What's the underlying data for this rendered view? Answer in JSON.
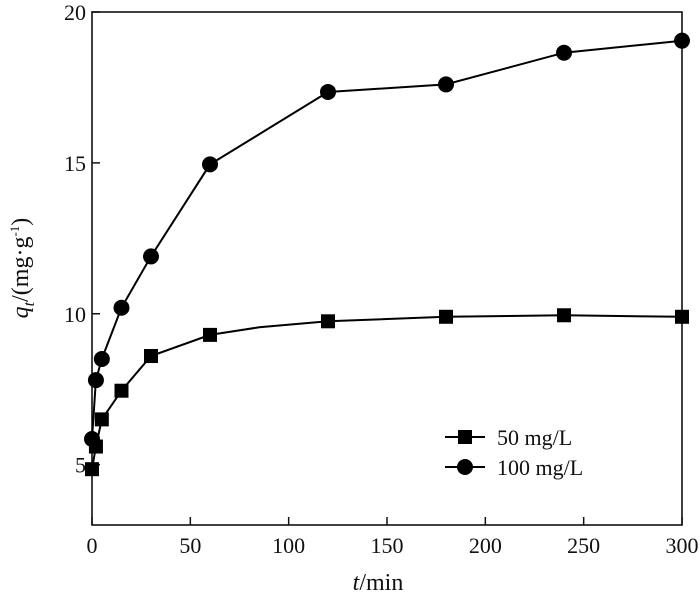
{
  "chart_data": {
    "type": "line",
    "xlabel": {
      "var": "t",
      "unit": "/min"
    },
    "ylabel": {
      "var": "q",
      "sub": "t",
      "unit_pre": "/(mg·g",
      "sup": "-1",
      "unit_post": ")"
    },
    "xlim": [
      0,
      300
    ],
    "ylim": [
      3,
      20
    ],
    "xticks": [
      0,
      50,
      100,
      150,
      200,
      250,
      300
    ],
    "yticks": [
      5,
      10,
      15,
      20
    ],
    "grid": false,
    "legend_position": "lower-right",
    "series": [
      {
        "name": "50 mg/L",
        "marker": "square",
        "x": [
          0,
          2,
          5,
          15,
          30,
          60,
          85,
          120,
          180,
          240,
          300
        ],
        "y": [
          4.85,
          5.6,
          6.5,
          7.45,
          8.6,
          9.3,
          9.55,
          9.75,
          9.9,
          9.95,
          9.9
        ],
        "marker_shown": [
          true,
          true,
          true,
          true,
          true,
          true,
          false,
          true,
          true,
          true,
          true
        ]
      },
      {
        "name": "100 mg/L",
        "marker": "circle",
        "x": [
          0,
          2,
          5,
          15,
          30,
          60,
          120,
          180,
          240,
          300
        ],
        "y": [
          5.85,
          7.8,
          8.5,
          10.2,
          11.9,
          14.95,
          17.35,
          17.6,
          18.65,
          19.05
        ],
        "marker_shown": [
          true,
          true,
          true,
          true,
          true,
          true,
          true,
          true,
          true,
          true
        ]
      }
    ]
  }
}
